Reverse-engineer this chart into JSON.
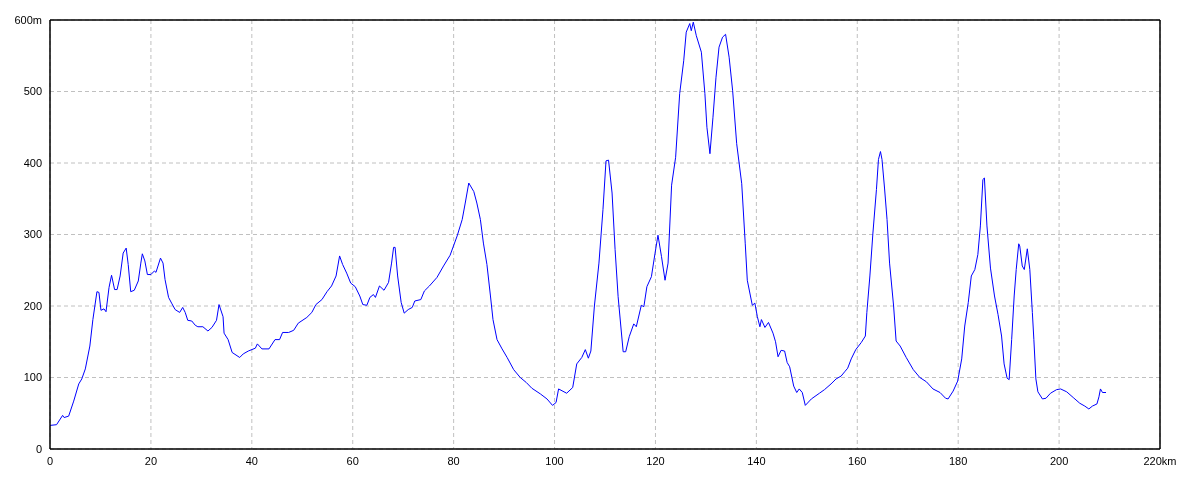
{
  "chart_data": {
    "type": "line",
    "color": "#0000ff",
    "line_style": "solid",
    "grid": true,
    "xlim": [
      0,
      220
    ],
    "ylim": [
      0,
      600
    ],
    "xticks": [
      0,
      20,
      40,
      60,
      80,
      100,
      120,
      140,
      160,
      180,
      200,
      {
        "value": 220,
        "label": "220km"
      }
    ],
    "yticks": [
      0,
      100,
      200,
      300,
      400,
      500,
      {
        "value": 600,
        "label": "600m"
      }
    ],
    "x": [
      0,
      1.3,
      2.5,
      2.8,
      3.7,
      4.7,
      5.7,
      6.3,
      7,
      7.9,
      8.5,
      9.3,
      9.7,
      10.1,
      10.7,
      11.1,
      11.7,
      12.2,
      12.8,
      13.3,
      13.9,
      14.5,
      15.1,
      15.5,
      16,
      16.7,
      17.5,
      18,
      18.3,
      18.8,
      19.3,
      20,
      20.7,
      21,
      21.9,
      22.4,
      22.8,
      23.5,
      24.1,
      24.8,
      25.7,
      26.3,
      26.8,
      27.3,
      28.1,
      28.8,
      29.3,
      30.3,
      31.3,
      32.1,
      33,
      33.5,
      34.3,
      34.5,
      35.3,
      36.1,
      37.6,
      38.3,
      39.3,
      40.7,
      41.1,
      42,
      43.4,
      44.6,
      45.5,
      46.1,
      47.3,
      48.3,
      49.2,
      50.9,
      51.9,
      52.7,
      53.9,
      54.9,
      55.8,
      56.7,
      57.4,
      58,
      58.8,
      59.6,
      60.5,
      61.4,
      62,
      62.8,
      63.4,
      64.1,
      64.5,
      65.3,
      66.2,
      67.1,
      67.7,
      68.1,
      68.4,
      68.9,
      69.6,
      70.2,
      71,
      71.8,
      72.3,
      73.5,
      74.2,
      75.2,
      76.7,
      78,
      79.3,
      80.7,
      81.7,
      82.3,
      83,
      84,
      84.6,
      85.3,
      85.9,
      86.6,
      87.3,
      87.8,
      88.6,
      89.6,
      90.6,
      91.9,
      93.2,
      94.4,
      95.5,
      97.2,
      98.5,
      99.6,
      100.3,
      100.8,
      102.4,
      103.6,
      104.4,
      105.4,
      106.1,
      106.7,
      107.2,
      107.9,
      108.8,
      109.6,
      110.2,
      110.7,
      111.4,
      112,
      112.6,
      113.6,
      114.1,
      114.8,
      115.7,
      116.2,
      117.2,
      117.7,
      118.3,
      119.2,
      119.9,
      120.5,
      121.2,
      121.9,
      122.5,
      123.2,
      124,
      124.8,
      125.6,
      126.1,
      126.8,
      127.1,
      127.5,
      128.1,
      129.1,
      129.8,
      130.2,
      130.8,
      131.4,
      132,
      132.6,
      133.3,
      133.9,
      134.6,
      135.3,
      136.1,
      137.1,
      137.8,
      138.2,
      139.2,
      139.7,
      140.2,
      140.7,
      141,
      141.7,
      142.4,
      143.3,
      143.8,
      144.3,
      144.9,
      145.6,
      146.1,
      146.6,
      147.4,
      148,
      148.5,
      149.1,
      149.7,
      150.9,
      152.5,
      153.5,
      154.8,
      155.8,
      156.8,
      157.5,
      158.1,
      158.8,
      159.7,
      160.8,
      161.6,
      161.9,
      162.5,
      163.1,
      163.8,
      164.2,
      164.6,
      164.9,
      165.4,
      165.9,
      166.4,
      167.2,
      167.7,
      168.5,
      169.7,
      171.1,
      172.4,
      173.7,
      175,
      176.4,
      177.5,
      178,
      179,
      179.9,
      180.7,
      181.3,
      182,
      182.6,
      183.3,
      183.9,
      184.4,
      184.9,
      185.2,
      185.7,
      186.4,
      187.2,
      187.9,
      188.6,
      189.1,
      189.7,
      190.1,
      190.6,
      191.1,
      191.5,
      192,
      192.2,
      192.7,
      193.1,
      193.7,
      194.2,
      194.7,
      195,
      195.4,
      195.8,
      196.7,
      197.4,
      198.3,
      199.5,
      200.3,
      201.5,
      202.8,
      204.1,
      205.1,
      205.9,
      206.6,
      207.5,
      207.9,
      208.2,
      208.6,
      209.3
    ],
    "values": [
      33,
      34,
      47,
      44,
      46,
      67,
      91,
      98,
      112,
      144,
      181,
      220,
      219,
      194,
      196,
      192,
      226,
      243,
      223,
      223,
      242,
      274,
      281,
      258,
      220,
      222,
      235,
      260,
      273,
      263,
      244,
      244,
      249,
      247,
      267,
      260,
      237,
      212,
      204,
      195,
      191,
      198,
      191,
      180,
      179,
      173,
      171,
      171,
      165,
      170,
      180,
      202,
      185,
      162,
      153,
      135,
      128,
      133,
      137,
      141,
      147,
      140,
      140,
      153,
      153,
      163,
      163,
      166,
      176,
      184,
      191,
      202,
      209,
      220,
      228,
      242,
      270,
      258,
      246,
      232,
      227,
      214,
      202,
      201,
      212,
      216,
      212,
      228,
      222,
      233,
      260,
      282,
      282,
      242,
      205,
      190,
      195,
      198,
      207,
      209,
      221,
      228,
      240,
      256,
      271,
      298,
      321,
      344,
      372,
      360,
      344,
      321,
      288,
      258,
      214,
      181,
      153,
      140,
      128,
      111,
      100,
      93,
      85,
      77,
      70,
      61,
      65,
      84,
      78,
      86,
      119,
      128,
      139,
      127,
      137,
      200,
      260,
      335,
      403,
      404,
      358,
      279,
      213,
      136,
      136,
      157,
      175,
      171,
      201,
      199,
      227,
      241,
      273,
      299,
      269,
      236,
      260,
      369,
      408,
      497,
      543,
      583,
      595,
      585,
      597,
      578,
      555,
      497,
      450,
      413,
      464,
      520,
      562,
      576,
      580,
      548,
      501,
      427,
      371,
      287,
      236,
      201,
      204,
      185,
      171,
      181,
      170,
      177,
      162,
      150,
      129,
      138,
      137,
      121,
      115,
      88,
      79,
      84,
      79,
      61,
      70,
      78,
      83,
      91,
      98,
      102,
      108,
      113,
      126,
      139,
      149,
      158,
      191,
      242,
      302,
      363,
      405,
      416,
      405,
      365,
      321,
      260,
      200,
      151,
      144,
      128,
      111,
      100,
      94,
      84,
      79,
      71,
      70,
      81,
      95,
      126,
      172,
      205,
      242,
      251,
      272,
      312,
      377,
      379,
      312,
      253,
      214,
      188,
      158,
      119,
      99,
      97,
      153,
      214,
      251,
      287,
      284,
      256,
      251,
      280,
      251,
      191,
      153,
      98,
      80,
      70,
      71,
      78,
      83,
      84,
      80,
      72,
      64,
      60,
      56,
      60,
      63,
      73,
      84,
      79,
      79
    ]
  }
}
